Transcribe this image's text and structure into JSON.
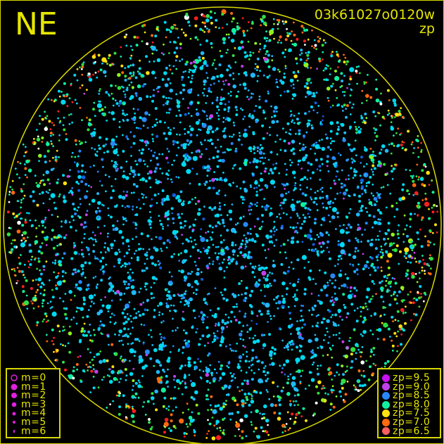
{
  "header": {
    "direction": "NE",
    "title": "03k61027o0120w",
    "subtitle": "zp"
  },
  "chart_data": {
    "type": "scatter",
    "title": "03k61027o0120w",
    "subtitle": "zp",
    "grid": false,
    "size_legend": {
      "position": "bottom-left",
      "entries": [
        {
          "label": "m=0",
          "style": "ring"
        },
        {
          "label": "m=1"
        },
        {
          "label": "m=2"
        },
        {
          "label": "m=3"
        },
        {
          "label": "m=4"
        },
        {
          "label": "m=5"
        },
        {
          "label": "m=6"
        }
      ]
    },
    "color_legend": {
      "position": "bottom-right",
      "entries": [
        {
          "label": "zp=9.5",
          "color": "#c810f0"
        },
        {
          "label": "zp=9.0",
          "color": "#c040e8"
        },
        {
          "label": "zp=8.5",
          "color": "#2888f8"
        },
        {
          "label": "zp=8.0",
          "color": "#10f0a0"
        },
        {
          "label": "zp=7.5",
          "color": "#ffe010"
        },
        {
          "label": "zp=7.0",
          "color": "#ff6a10"
        },
        {
          "label": "zp=6.5",
          "color": "#ff6060"
        }
      ]
    },
    "horizon_color": "#d8d800"
  }
}
